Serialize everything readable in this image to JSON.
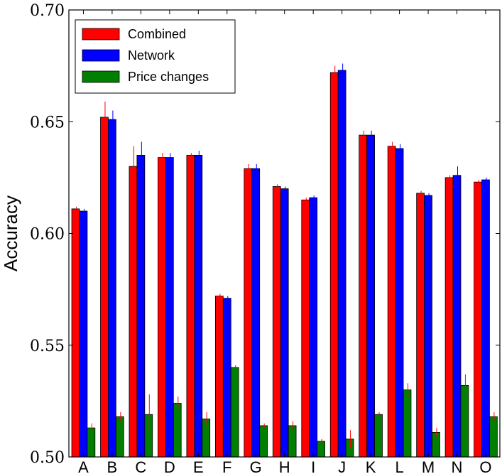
{
  "chart_data": {
    "type": "bar",
    "title": "",
    "xlabel": "",
    "ylabel": "Accuracy",
    "ylim": [
      0.5,
      0.7
    ],
    "yticks": [
      "0.50",
      "0.55",
      "0.60",
      "0.65",
      "0.70"
    ],
    "grid": false,
    "legend_position": "top-left",
    "categories": [
      "A",
      "B",
      "C",
      "D",
      "E",
      "F",
      "G",
      "H",
      "I",
      "J",
      "K",
      "L",
      "M",
      "N",
      "O"
    ],
    "series": [
      {
        "name": "Combined",
        "color": "#ff0000",
        "error_color": "#ff0000",
        "values": [
          0.611,
          0.652,
          0.63,
          0.634,
          0.635,
          0.572,
          0.629,
          0.621,
          0.615,
          0.672,
          0.644,
          0.639,
          0.618,
          0.625,
          0.623
        ],
        "errors": [
          0.001,
          0.007,
          0.009,
          0.002,
          0.001,
          0.001,
          0.002,
          0.001,
          0.001,
          0.003,
          0.002,
          0.002,
          0.001,
          0.001,
          0.001
        ]
      },
      {
        "name": "Network",
        "color": "#0000ff",
        "error_color": "#0000ff",
        "values": [
          0.61,
          0.651,
          0.635,
          0.634,
          0.635,
          0.571,
          0.629,
          0.62,
          0.616,
          0.673,
          0.644,
          0.638,
          0.617,
          0.626,
          0.624
        ],
        "errors": [
          0.001,
          0.004,
          0.006,
          0.002,
          0.002,
          0.001,
          0.002,
          0.001,
          0.001,
          0.003,
          0.002,
          0.002,
          0.001,
          0.004,
          0.001
        ]
      },
      {
        "name": "Price changes",
        "color": "#007f00",
        "error_color": "#ff0000",
        "values": [
          0.513,
          0.518,
          0.519,
          0.524,
          0.517,
          0.54,
          0.514,
          0.514,
          0.507,
          0.508,
          0.519,
          0.53,
          0.511,
          0.532,
          0.518
        ],
        "errors": [
          0.002,
          0.002,
          0.009,
          0.003,
          0.003,
          0.001,
          0.001,
          0.002,
          0.001,
          0.004,
          0.001,
          0.003,
          0.002,
          0.005,
          0.002
        ]
      }
    ]
  }
}
